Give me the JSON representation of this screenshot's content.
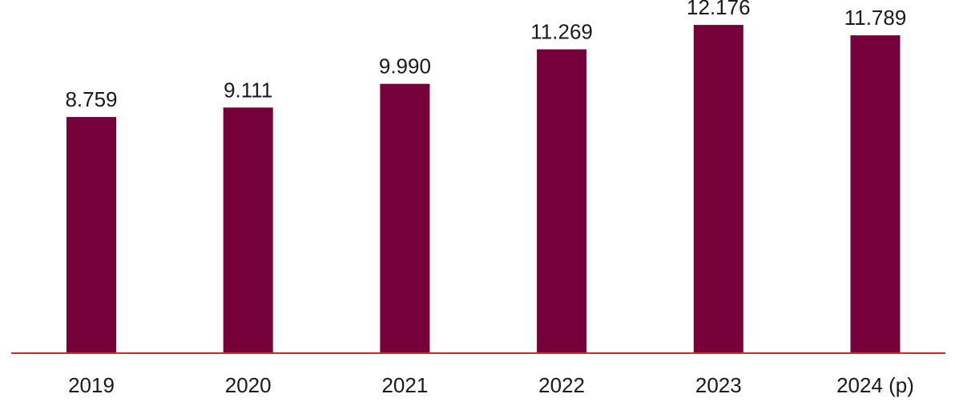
{
  "chart_data": {
    "type": "bar",
    "categories": [
      "2019",
      "2020",
      "2021",
      "2022",
      "2023",
      "2024 (p)"
    ],
    "series": [
      {
        "values": [
          8759,
          9111,
          9990,
          11269,
          12176,
          11789
        ],
        "value_labels": [
          "8.759",
          "9.111",
          "9.990",
          "11.269",
          "12.176",
          "11.789"
        ],
        "color": "#76003a"
      }
    ],
    "title": "",
    "xlabel": "",
    "ylabel": "",
    "ylim": [
      0,
      13100
    ],
    "grid": false,
    "legend": "none",
    "baseline_color": "#e0202e"
  }
}
